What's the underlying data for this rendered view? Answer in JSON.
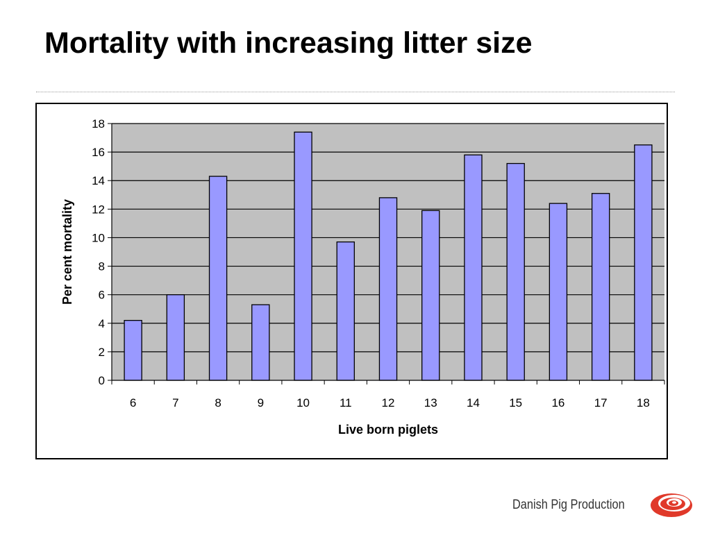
{
  "slide": {
    "title": "Mortality with increasing litter size",
    "brand_name": "Danish Pig Production"
  },
  "colors": {
    "bar_fill": "#9999ff",
    "plot_background": "#c0c0c0",
    "brand_red": "#e0392a"
  },
  "chart_data": {
    "type": "bar",
    "categories": [
      "6",
      "7",
      "8",
      "9",
      "10",
      "11",
      "12",
      "13",
      "14",
      "15",
      "16",
      "17",
      "18"
    ],
    "values": [
      4.2,
      6.0,
      14.3,
      5.3,
      17.4,
      9.7,
      12.8,
      11.9,
      15.8,
      15.2,
      12.4,
      13.1,
      16.5
    ],
    "title": "",
    "xlabel": "Live born piglets",
    "ylabel": "Per cent mortality",
    "ylim": [
      0,
      18
    ],
    "yticks": [
      0,
      2,
      4,
      6,
      8,
      10,
      12,
      14,
      16,
      18
    ],
    "grid": true,
    "legend": "none"
  }
}
